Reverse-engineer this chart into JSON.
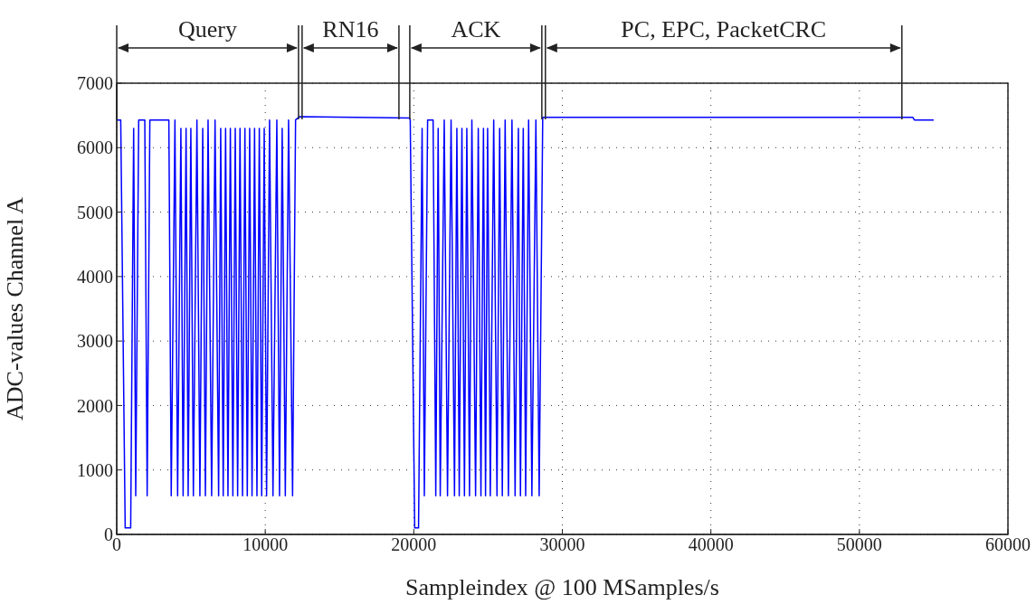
{
  "chart_data": {
    "type": "line",
    "xlabel": "Sampleindex @ 100 MSamples/s",
    "ylabel": "ADC-values Channel A",
    "x": [
      0,
      270,
      570,
      940,
      1140,
      1280,
      1480,
      1890,
      2050,
      2230,
      3510,
      3670,
      3920,
      4100,
      4320,
      4470,
      4670,
      4810,
      4990,
      5160,
      5400,
      5600,
      5790,
      5970,
      6150,
      6390,
      6620,
      6860,
      7000,
      7170,
      7330,
      7490,
      7650,
      7820,
      7980,
      8140,
      8300,
      8470,
      8630,
      8790,
      8950,
      9110,
      9280,
      9440,
      9600,
      9760,
      9930,
      10090,
      10290,
      10520,
      10780,
      10960,
      11140,
      11350,
      11570,
      11840,
      12040,
      12300,
      19700,
      19760,
      20060,
      20320,
      20560,
      20710,
      20930,
      21300,
      21480,
      21640,
      21780,
      22050,
      22270,
      22510,
      22740,
      22900,
      23060,
      23240,
      23410,
      23570,
      23750,
      23910,
      24160,
      24340,
      24520,
      24690,
      24830,
      24970,
      25150,
      25380,
      25600,
      25780,
      25960,
      26150,
      26370,
      26610,
      26820,
      27040,
      27180,
      27370,
      27530,
      27730,
      27950,
      28220,
      28440,
      28680,
      53600,
      53700,
      55000
    ],
    "series": [
      {
        "color": "#0000ff",
        "values": [
          6430,
          6430,
          100,
          100,
          6300,
          600,
          6430,
          6430,
          600,
          6430,
          6430,
          600,
          6430,
          600,
          6300,
          600,
          6300,
          600,
          6300,
          600,
          6430,
          600,
          6300,
          600,
          6430,
          600,
          6430,
          600,
          6300,
          600,
          6300,
          600,
          6300,
          600,
          6300,
          600,
          6300,
          600,
          6300,
          600,
          6300,
          600,
          6300,
          600,
          6300,
          600,
          6300,
          600,
          6430,
          600,
          6430,
          600,
          6300,
          600,
          6430,
          600,
          6430,
          6480,
          6460,
          6430,
          100,
          100,
          6300,
          600,
          6430,
          6430,
          600,
          6300,
          600,
          6430,
          600,
          6430,
          600,
          6300,
          600,
          6300,
          600,
          6300,
          600,
          6430,
          600,
          6300,
          600,
          6300,
          600,
          6300,
          600,
          6430,
          600,
          6300,
          600,
          6430,
          600,
          6430,
          600,
          6300,
          600,
          6300,
          600,
          6430,
          600,
          6430,
          600,
          6470,
          6470,
          6430,
          6430
        ]
      }
    ],
    "xlim": [
      0,
      60000
    ],
    "xticks": [
      0,
      10000,
      20000,
      30000,
      40000,
      50000,
      60000
    ],
    "ylim": [
      0,
      7000
    ],
    "yticks": [
      0,
      1000,
      2000,
      3000,
      4000,
      5000,
      6000,
      7000
    ],
    "grid": true,
    "line_style": "solid",
    "marker": "none",
    "ref_lines": [
      {
        "axis": "x",
        "value": 0,
        "label": null
      },
      {
        "axis": "x",
        "value": 12240,
        "label": null
      },
      {
        "axis": "x",
        "value": 12480,
        "label": null
      },
      {
        "axis": "x",
        "value": 19000,
        "label": null
      },
      {
        "axis": "x",
        "value": 19730,
        "label": null
      },
      {
        "axis": "x",
        "value": 28620,
        "label": null
      },
      {
        "axis": "x",
        "value": 28860,
        "label": null
      },
      {
        "axis": "x",
        "value": 52860,
        "label": null
      }
    ],
    "annotations": [
      "Query",
      "RN16",
      "ACK",
      "PC, EPC, PacketCRC"
    ]
  }
}
